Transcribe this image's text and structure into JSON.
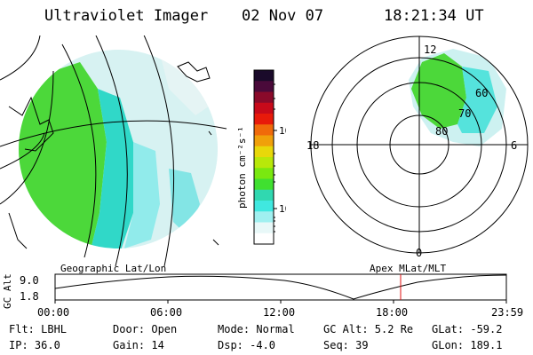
{
  "header": {
    "instrument": "Ultraviolet Imager",
    "date": "02 Nov 07",
    "time": "18:21:34 UT"
  },
  "colorbar": {
    "unit_label": "photon cm⁻²s⁻¹",
    "ticks": [
      "100",
      "10"
    ],
    "colors": [
      "#1a0a2a",
      "#4a0a3a",
      "#8a0a2a",
      "#c80a1a",
      "#e81a0a",
      "#f06a0a",
      "#f0a00a",
      "#e8d80a",
      "#b8e80a",
      "#7ae810",
      "#40e030",
      "#30d8b0",
      "#40e8e0",
      "#a0f0f0",
      "#e8f8f8",
      "#ffffff"
    ]
  },
  "geo_map": {
    "label": "Geographic Lat/Lon",
    "land_color": "#4cd83a",
    "mid_color": "#30d8c8",
    "light_color": "#b8eef0"
  },
  "polar_plot": {
    "label": "Apex MLat/MLT",
    "mlt_labels": [
      "12",
      "18",
      "6",
      "0"
    ],
    "lat_labels": [
      "60",
      "70",
      "80"
    ]
  },
  "orbit_plot": {
    "ylabel": "GC Alt",
    "y_ticks": [
      "9.0",
      "1.8"
    ],
    "x_ticks": [
      "00:00",
      "06:00",
      "12:00",
      "18:00",
      "23:59"
    ],
    "marker_color": "#e01010"
  },
  "info": {
    "filter": "Flt: LBHL",
    "door": "Door: Open",
    "mode": "Mode: Normal",
    "gc_alt": "GC Alt: 5.2 Re",
    "glat": "GLat: -59.2",
    "ip": "IP: 36.0",
    "gain": "Gain: 14",
    "dsp": "Dsp:   -4.0",
    "seq": "Seq: 39",
    "glon": "GLon: 189.1"
  }
}
